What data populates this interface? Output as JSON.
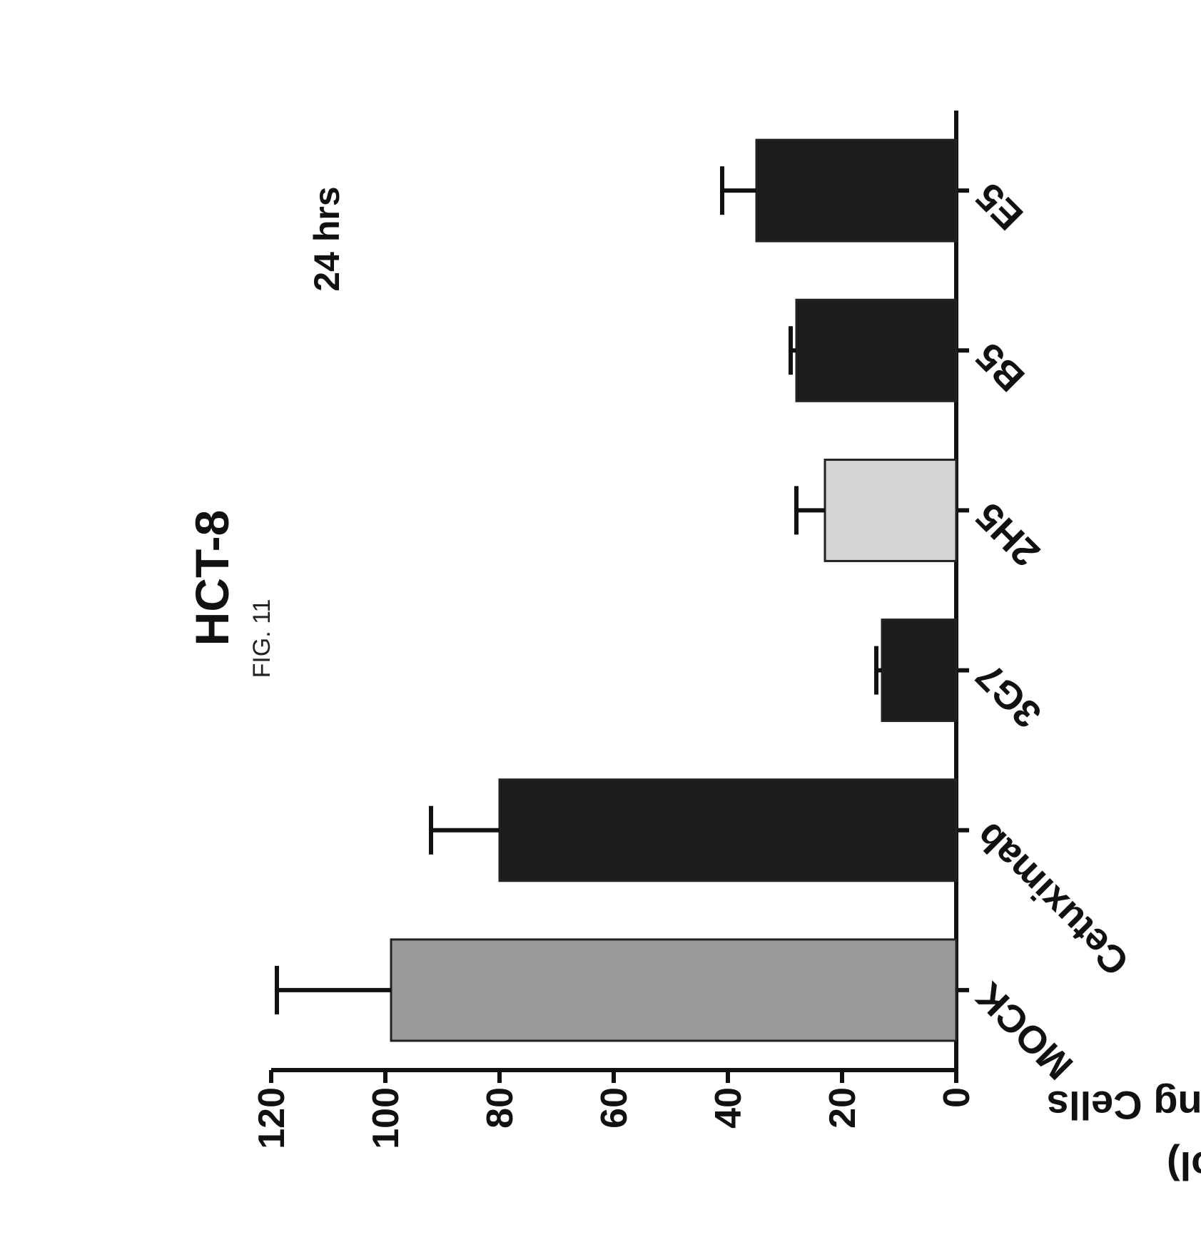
{
  "figure_label": "FIG. 11",
  "chart_data": {
    "type": "bar",
    "title": "HCT-8",
    "subtitle": "24 hrs",
    "ylabel_line1": "Numbers of Invading Cells",
    "ylabel_line2": "(% of Control)",
    "xlabel": "",
    "ylim": [
      0,
      120
    ],
    "yticks": [
      "0",
      "20",
      "40",
      "60",
      "80",
      "100",
      "120"
    ],
    "categories": [
      "MOCK",
      "Cetuximab",
      "3G7",
      "2H5",
      "B5",
      "E5"
    ],
    "values": [
      99,
      80,
      13,
      23,
      28,
      35
    ],
    "errors": [
      20,
      12,
      1,
      5,
      1,
      6
    ],
    "bar_colors": [
      "#9a9a9a",
      "#1c1c1c",
      "#1c1c1c",
      "#d4d4d4",
      "#1c1c1c",
      "#1c1c1c"
    ],
    "grid": false
  }
}
